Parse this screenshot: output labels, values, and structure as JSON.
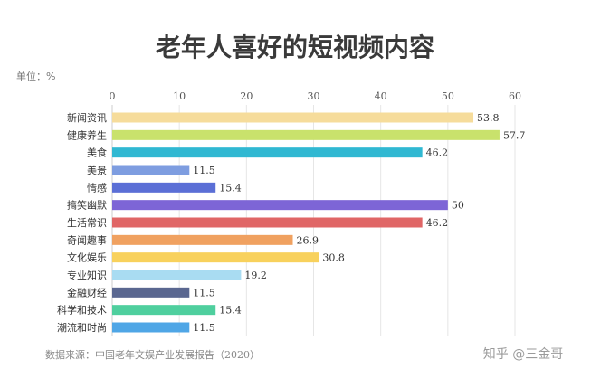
{
  "chart_data": {
    "type": "bar",
    "orientation": "horizontal",
    "title": "老年人喜好的短视频内容",
    "unit_label": "单位：%",
    "categories": [
      "新闻资讯",
      "健康养生",
      "美食",
      "美景",
      "情感",
      "搞笑幽默",
      "生活常识",
      "奇闻趣事",
      "文化娱乐",
      "专业知识",
      "金融财经",
      "科学和技术",
      "潮流和时尚"
    ],
    "values": [
      53.8,
      57.7,
      46.2,
      11.5,
      15.4,
      50,
      46.2,
      26.9,
      30.8,
      19.2,
      11.5,
      15.4,
      11.5
    ],
    "data_labels": [
      "53.8",
      "57.7",
      "46.2",
      "11.5",
      "15.4",
      "50",
      "46.2",
      "26.9",
      "30.8",
      "19.2",
      "11.5",
      "15.4",
      "11.5"
    ],
    "bar_colors": [
      "#f6dc9b",
      "#c9e26c",
      "#30b8d2",
      "#7e9de0",
      "#5b6fd6",
      "#7d65d6",
      "#e06666",
      "#f0a160",
      "#f8d15c",
      "#a9dcf2",
      "#5a6790",
      "#4fcf9e",
      "#4fa6e6"
    ],
    "xlim": [
      0,
      60
    ],
    "xticks": [
      "0",
      "10",
      "20",
      "30",
      "40",
      "50",
      "60"
    ],
    "grid": true,
    "source": "数据来源：中国老年文娱产业发展报告（2020）",
    "watermark": "知乎 @三金哥"
  }
}
